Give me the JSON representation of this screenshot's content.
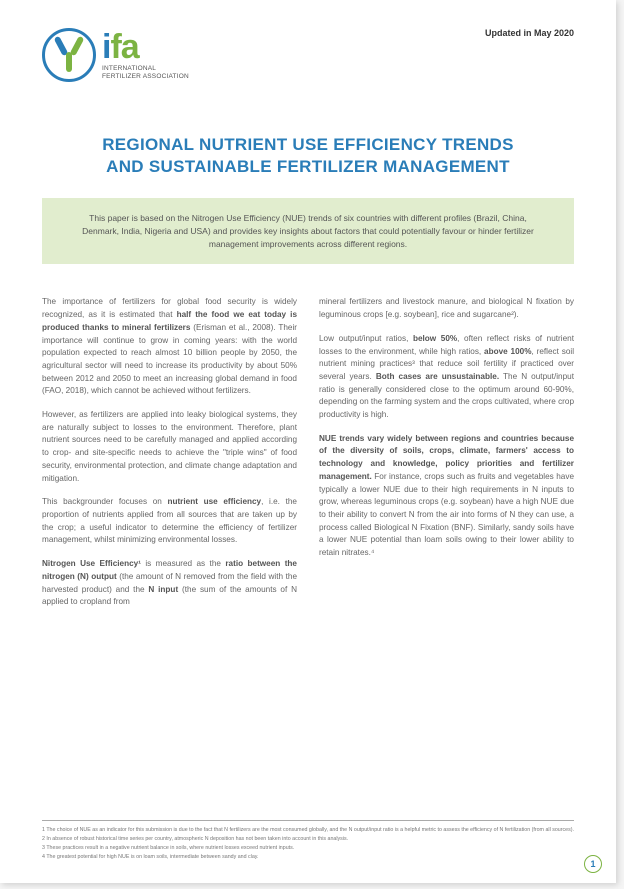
{
  "header": {
    "updated_label": "Updated in May 2020",
    "logo": {
      "wordmark_i": "i",
      "wordmark_fa": "fa",
      "subline1": "INTERNATIONAL",
      "subline2": "FERTILIZER ASSOCIATION",
      "circle_color": "#2a7db8",
      "green": "#7cb342",
      "blue": "#2a7db8"
    }
  },
  "title_line1": "REGIONAL NUTRIENT USE EFFICIENCY TRENDS",
  "title_line2": "AND SUSTAINABLE FERTILIZER MANAGEMENT",
  "abstract": "This paper is based on the Nitrogen Use Efficiency (NUE) trends of six countries with different profiles (Brazil, China, Denmark, India, Nigeria and USA) and provides key insights about factors that could potentially favour or hinder fertilizer management improvements across different regions.",
  "body": {
    "left": {
      "p1a": "The importance of fertilizers for global food security is widely recognized, as it is estimated that ",
      "p1b": "half the food we eat today is produced thanks to mineral fertilizers",
      "p1c": " (Erisman et al., 2008). Their importance will continue to grow in coming years: with the world population expected to reach almost 10 billion people by 2050, the agricultural sector will need to increase its productivity by about 50% between 2012 and 2050 to meet an increasing global demand in food (FAO, 2018), which cannot be achieved without fertilizers.",
      "p2": "However, as fertilizers are applied into leaky biological systems, they are naturally subject to losses to the environment. Therefore, plant nutrient sources need to be carefully managed and applied according to crop- and site-specific needs to achieve the \"triple wins\" of food security, environmental protection, and climate change adaptation and mitigation.",
      "p3a": "This backgrounder focuses on ",
      "p3b": "nutrient use efficiency",
      "p3c": ", i.e. the proportion of nutrients applied from all sources that are taken up by the crop; a useful indicator to determine the efficiency of fertilizer management, whilst minimizing environmental losses.",
      "p4a": "Nitrogen Use Efficiency¹",
      "p4b": " is measured as the ",
      "p4c": "ratio between the nitrogen (N) output",
      "p4d": " (the amount of N removed from the field with the harvested product) and the ",
      "p4e": "N input",
      "p4f": " (the sum of the amounts of N applied to cropland from"
    },
    "right": {
      "p1": "mineral fertilizers and livestock manure, and biological N fixation by leguminous crops [e.g. soybean], rice and sugarcane²).",
      "p2a": "Low output/input ratios, ",
      "p2b": "below 50%",
      "p2c": ", often reflect risks of nutrient losses to the environment, while high ratios, ",
      "p2d": "above 100%",
      "p2e": ", reflect soil nutrient mining practices³ that reduce soil fertility if practiced over several years. ",
      "p2f": "Both cases are unsustainable.",
      "p2g": " The N output/input ratio is generally considered close to the optimum around 60-90%, depending on the farming system and the crops cultivated, where crop productivity is high.",
      "p3a": "NUE trends vary widely between regions and countries because of the diversity of soils, crops, climate, farmers' access to technology and knowledge, policy priorities and fertilizer management.",
      "p3b": " For instance, crops such as fruits and vegetables have typically a lower NUE due to their high requirements in N inputs to grow, whereas leguminous crops (e.g. soybean) have a high NUE due to their ability to convert N from the air into forms of N they can use, a process called Biological N Fixation (BNF). Similarly, sandy soils have a lower NUE potential than loam soils owing to their lower ability to retain nitrates.⁴"
    }
  },
  "footnotes": {
    "f1": "1  The choice of NUE as an indicator for this submission is due to the fact that N fertilizers are the most consumed globally, and the N output/input ratio is a helpful metric to assess the efficiency of N fertilization (from all sources).",
    "f2": "2  In absence of robust historical time series per country, atmospheric N deposition has not been taken into account in this analysis.",
    "f3": "3  These practices result in a negative nutrient balance in soils, where nutrient losses exceed nutrient inputs.",
    "f4": "4  The greatest potential for high NUE is on loam soils, intermediate between sandy and clay."
  },
  "page_number": "1",
  "colors": {
    "title": "#2a7db8",
    "abstract_bg": "#e1edce",
    "body_text": "#666666",
    "page_bg": "#ffffff"
  }
}
